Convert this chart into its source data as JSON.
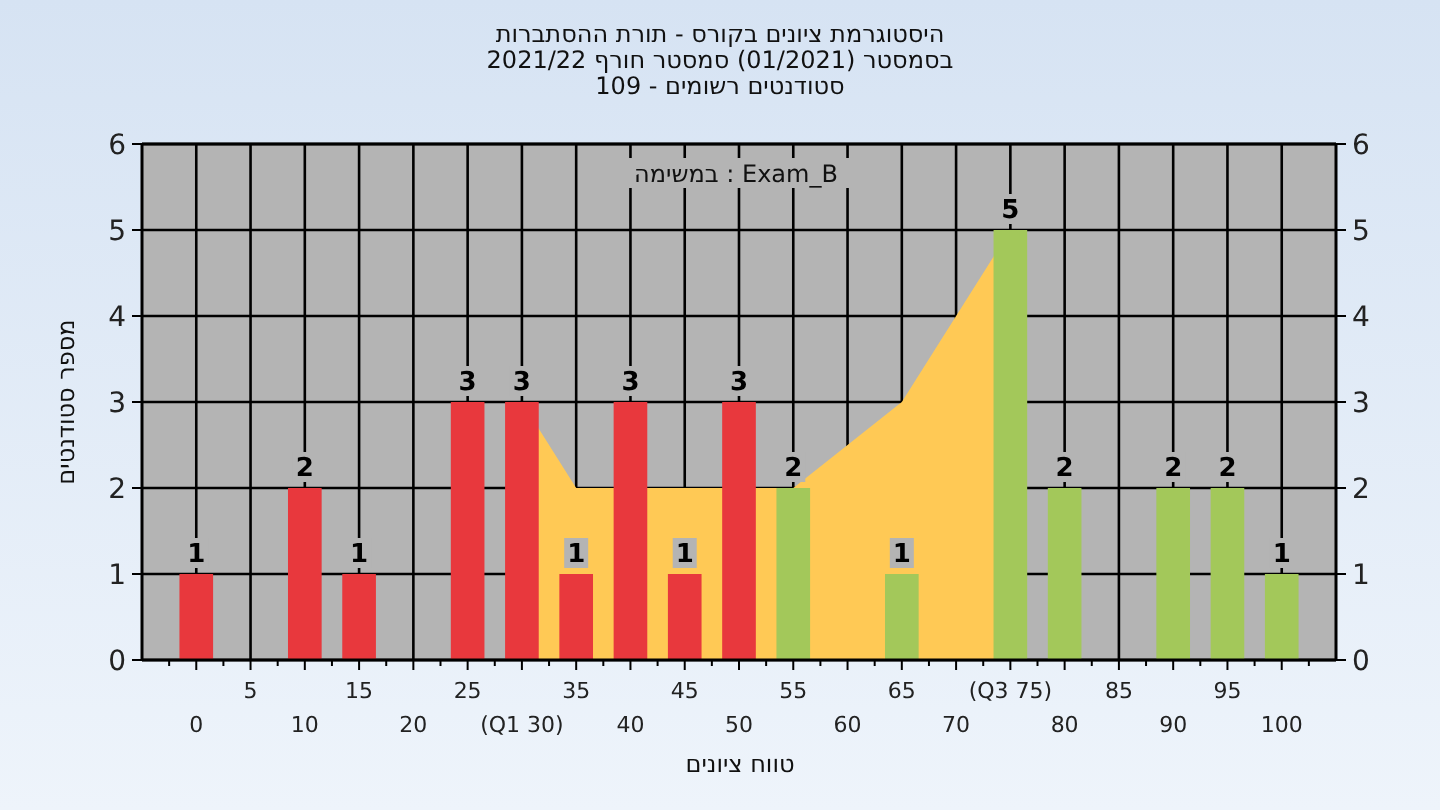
{
  "chart_data": {
    "type": "bar",
    "title": "היסטוגרמת ציונים בקורס - תורת ההסתברות\nבסמסטר  (01/2021)  סמסטר חורף 2021/22\nסטודנטים רשומים - 109",
    "annotations": [
      "במשימה : Exam_B"
    ],
    "xlabel": "טווח ציונים",
    "ylabel": "מספר סטודנטים",
    "categories": [
      "0",
      "5",
      "10",
      "15",
      "20",
      "25",
      "(Q1 30)",
      "35",
      "40",
      "45",
      "50",
      "55",
      "60",
      "65",
      "70",
      "(Q3 75)",
      "80",
      "85",
      "90",
      "95",
      "100"
    ],
    "series": [
      {
        "type": "area",
        "color": "#ffc955",
        "x": [
          "(Q1 30)",
          "35",
          "45",
          "55",
          "60",
          "65",
          "70",
          "(Q3 75)"
        ],
        "values": [
          3,
          2,
          2,
          2,
          2.5,
          3,
          4,
          5
        ]
      },
      {
        "colors": [
          "#e8383d",
          "#e8383d",
          "#e8383d",
          "#e8383d",
          "#e8383d",
          "#e8383d",
          "#e8383d",
          "#e8383d",
          "#e8383d",
          "#e8383d",
          "#e8383d",
          "#a3c85a",
          "#a3c85a",
          "#a3c85a",
          "#a3c85a",
          "#a3c85a",
          "#a3c85a",
          "#a3c85a",
          "#a3c85a",
          "#a3c85a",
          "#a3c85a"
        ],
        "values": [
          1,
          0,
          2,
          1,
          0,
          3,
          3,
          1,
          3,
          1,
          3,
          2,
          0,
          1,
          0,
          5,
          2,
          0,
          2,
          2,
          1
        ],
        "value_labels": [
          "1",
          null,
          "2",
          "1",
          null,
          "3",
          "3",
          "1",
          "3",
          "1",
          "3",
          "2",
          null,
          "1",
          null,
          "5",
          "2",
          null,
          "2",
          "2",
          "1"
        ]
      }
    ],
    "ylim": [
      0,
      6
    ],
    "yticks": [
      0,
      1,
      2,
      3,
      4,
      5,
      6
    ],
    "y2lim": [
      0,
      6
    ],
    "y2ticks": [
      0,
      1,
      2,
      3,
      4,
      5,
      6
    ],
    "grid": true
  }
}
